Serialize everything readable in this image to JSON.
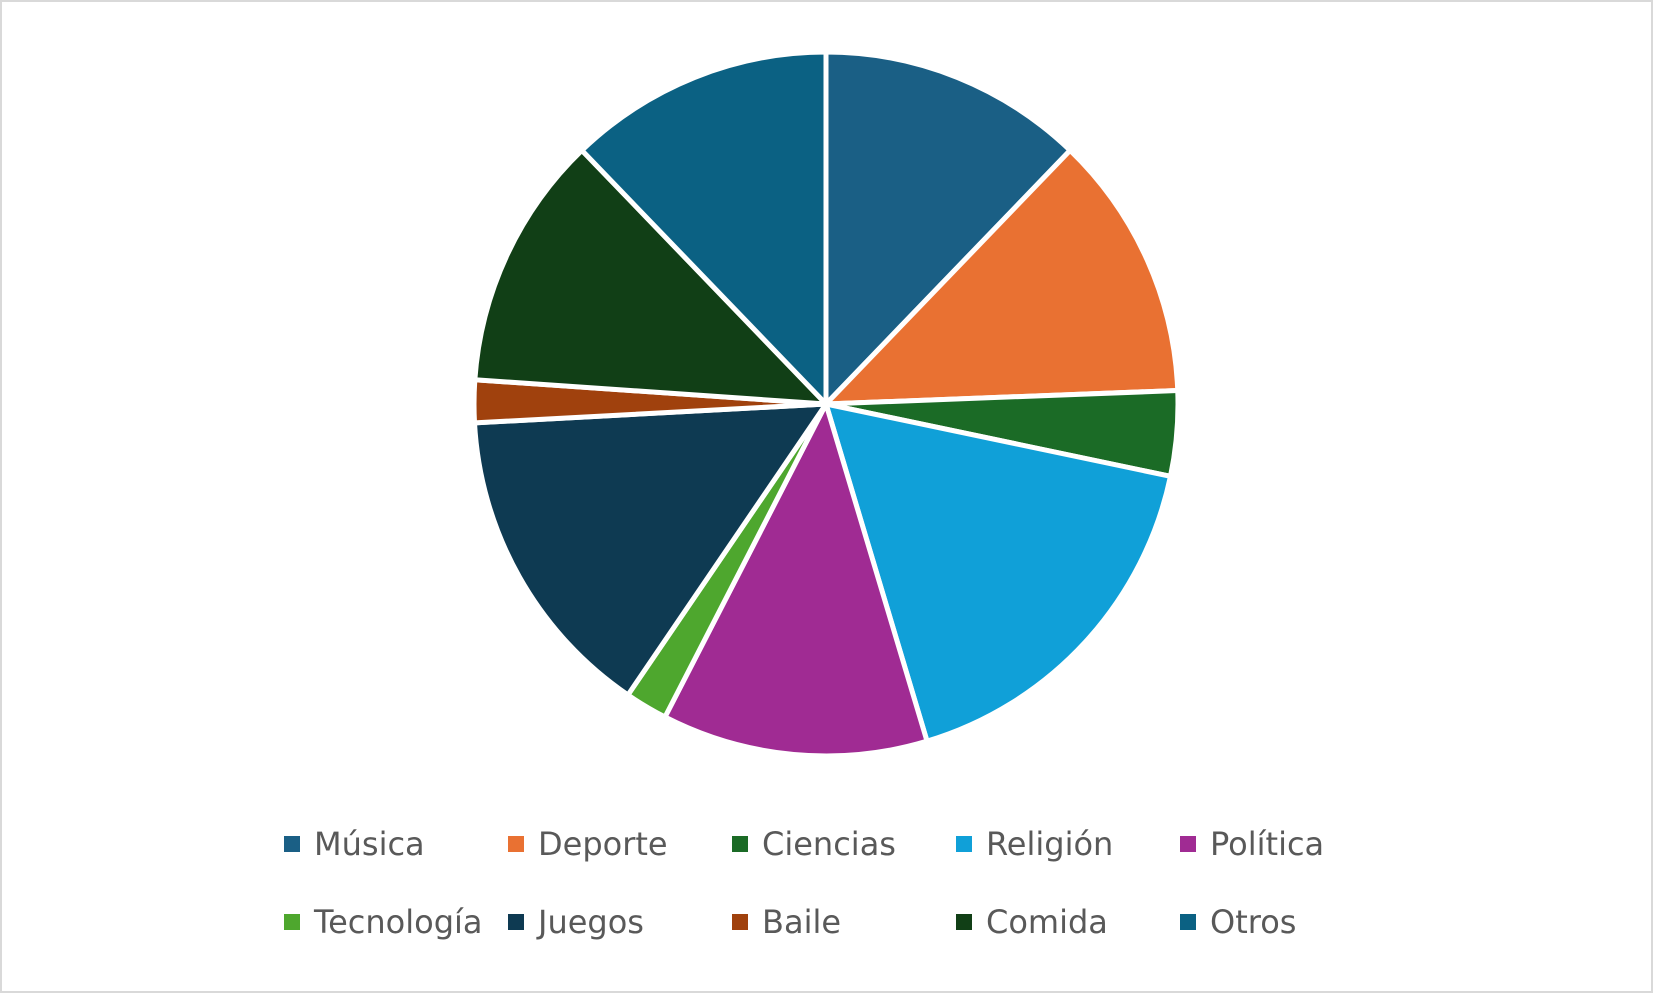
{
  "chart_data": {
    "type": "pie",
    "legend_position": "bottom",
    "slices": [
      {
        "label": "Música",
        "value": 12.5,
        "color": "#1a5f85"
      },
      {
        "label": "Deporte",
        "value": 12.5,
        "color": "#e97132"
      },
      {
        "label": "Ciencias",
        "value": 4,
        "color": "#1b6b26"
      },
      {
        "label": "Religión",
        "value": 17.5,
        "color": "#10a0d8"
      },
      {
        "label": "Política",
        "value": 12.5,
        "color": "#a02b93"
      },
      {
        "label": "Tecnología",
        "value": 2,
        "color": "#4ea72e"
      },
      {
        "label": "Juegos",
        "value": 15,
        "color": "#0e3a52"
      },
      {
        "label": "Baile",
        "value": 2,
        "color": "#a0410d"
      },
      {
        "label": "Comida",
        "value": 12,
        "color": "#113f16"
      },
      {
        "label": "Otros",
        "value": 12.5,
        "color": "#0b6183"
      }
    ]
  }
}
